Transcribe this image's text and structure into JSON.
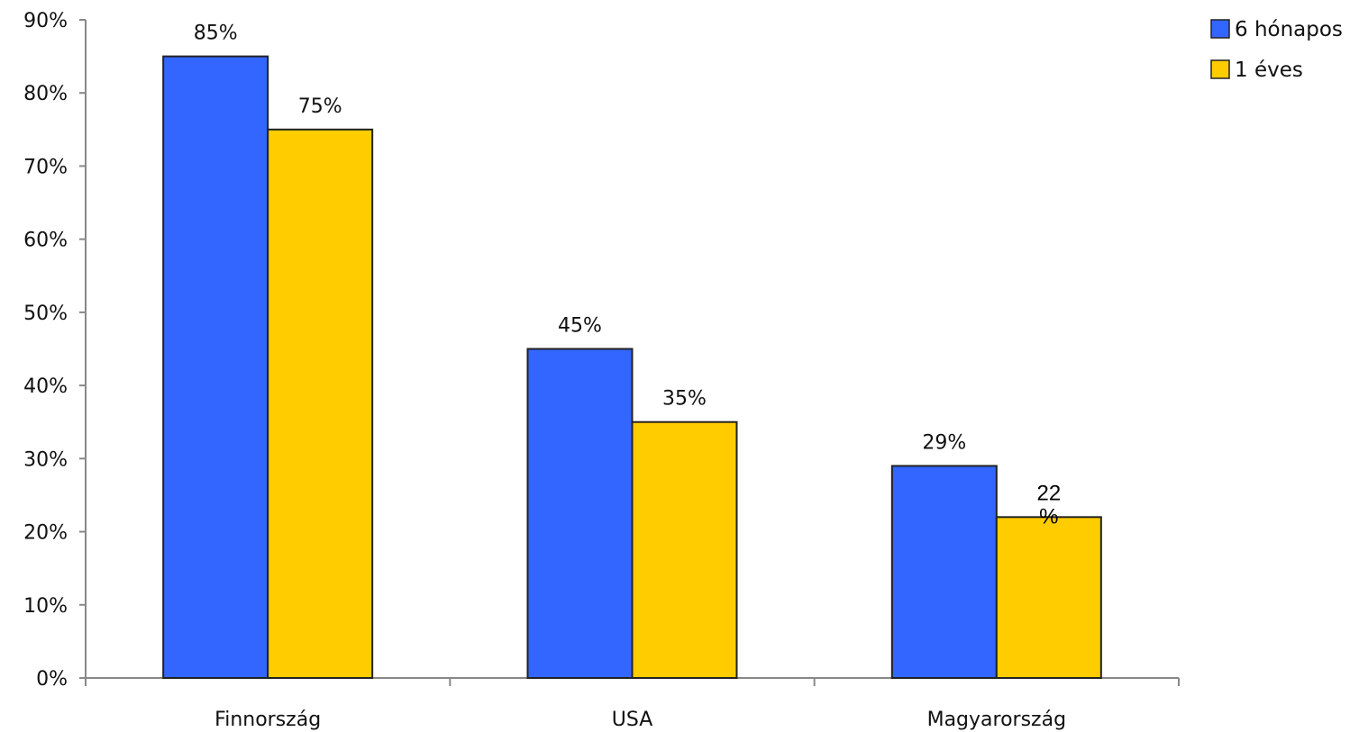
{
  "chart_data": {
    "type": "bar",
    "title": "",
    "xlabel": "",
    "ylabel": "",
    "categories": [
      "Finnország",
      "USA",
      "Magyarország"
    ],
    "series": [
      {
        "name": "6 hónapos",
        "color": "#3366ff",
        "values": [
          85,
          45,
          29
        ],
        "labels": [
          "85%",
          "45%",
          "29%"
        ]
      },
      {
        "name": "1 éves",
        "color": "#ffcc00",
        "values": [
          75,
          35,
          22
        ],
        "labels": [
          "75%",
          "35%",
          "22%"
        ]
      }
    ],
    "ylim": [
      0,
      90
    ],
    "yticks": [
      0,
      10,
      20,
      30,
      40,
      50,
      60,
      70,
      80,
      90
    ],
    "ytick_labels": [
      "0%",
      "10%",
      "20%",
      "30%",
      "40%",
      "50%",
      "60%",
      "70%",
      "80%",
      "90%"
    ],
    "grid": false,
    "legend_position": "top-right"
  }
}
